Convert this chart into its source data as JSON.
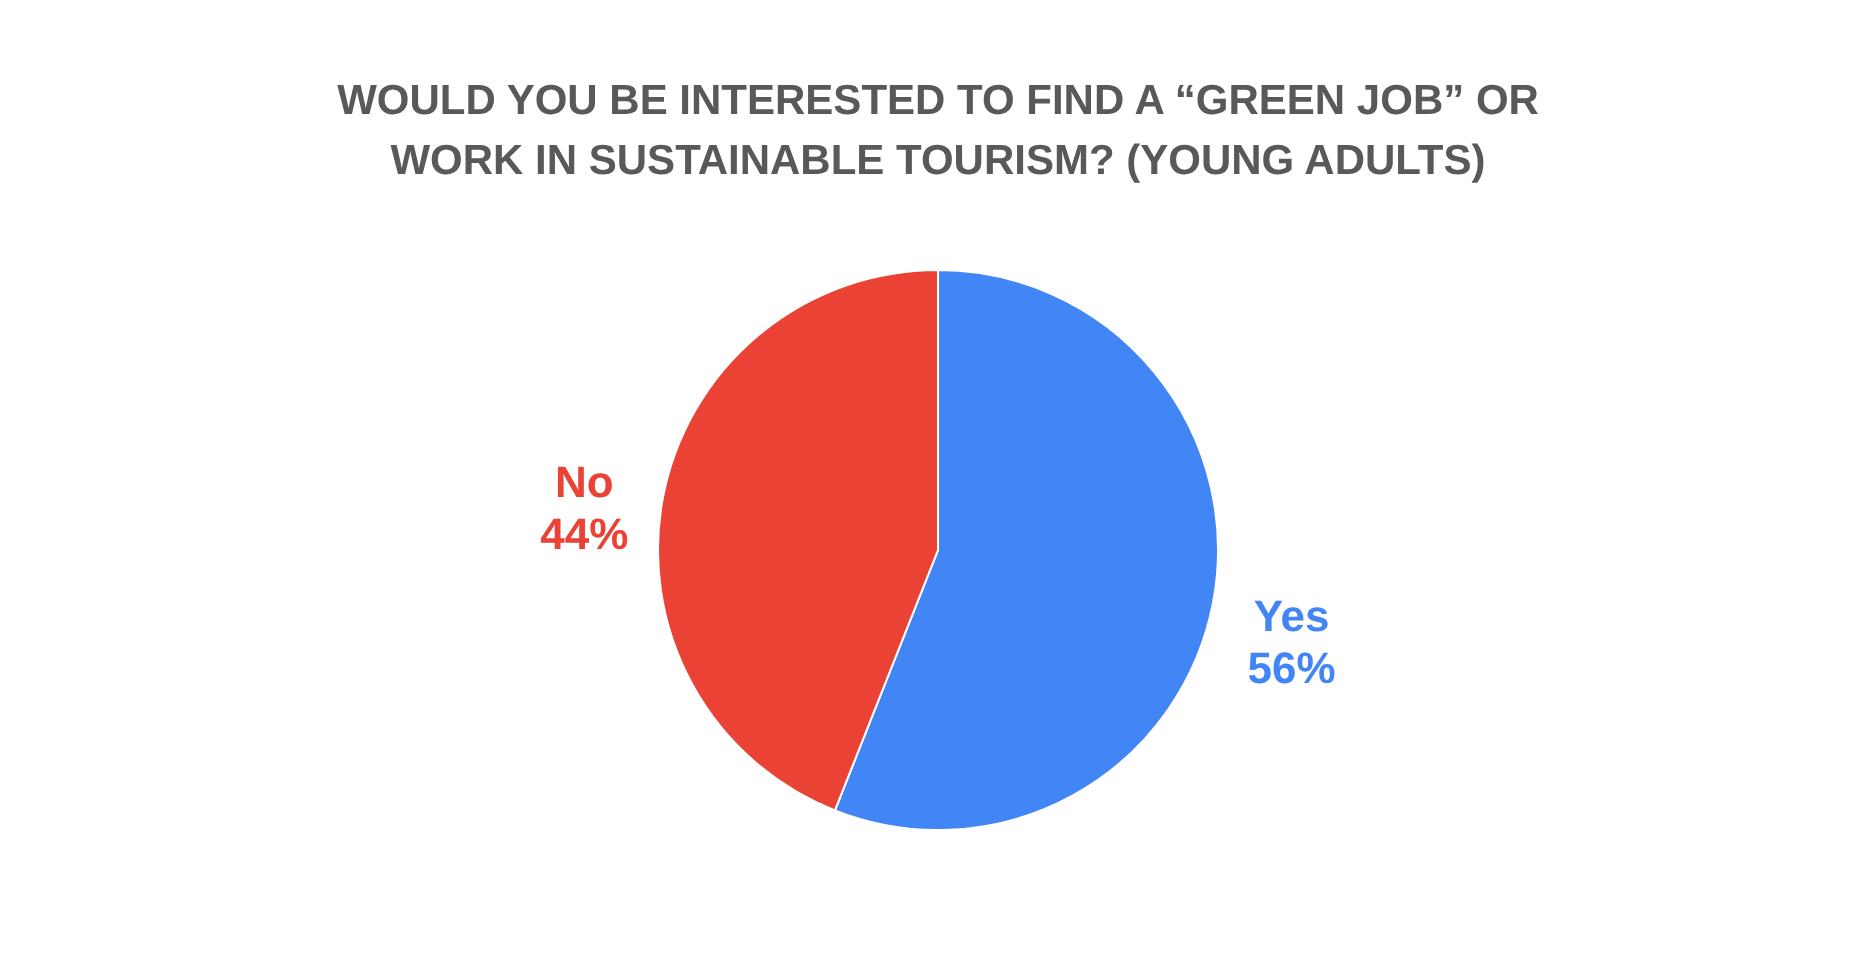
{
  "chart_data": {
    "type": "pie",
    "title": "WOULD YOU BE INTERESTED TO FIND A “GREEN JOB” OR WORK IN SUSTAINABLE TOURISM? (YOUNG ADULTS)",
    "categories": [
      "Yes",
      "No"
    ],
    "values": [
      56,
      44
    ],
    "value_labels": [
      "56%",
      "44%"
    ],
    "colors": [
      "#4285f4",
      "#ea4335"
    ],
    "legend": false
  }
}
